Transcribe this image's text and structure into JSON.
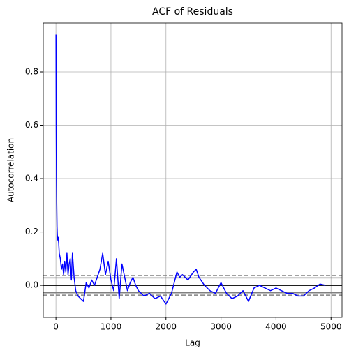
{
  "chart_data": {
    "type": "line",
    "title": "ACF of Residuals",
    "xlabel": "Lag",
    "ylabel": "Autocorrelation",
    "xlim": [
      -230,
      5200
    ],
    "ylim": [
      -0.12,
      0.983
    ],
    "xticks": [
      0,
      1000,
      2000,
      3000,
      4000,
      5000
    ],
    "yticks": [
      {
        "value": 0,
        "label": "0.0"
      },
      0.2,
      0.4,
      0.6,
      0.8
    ],
    "grid": true,
    "hlines": [
      {
        "value": 0.0368,
        "color": "grey",
        "style": "dashed"
      },
      {
        "value": 0.028,
        "color": "grey",
        "style": "solid"
      },
      {
        "value": 0,
        "color": "black",
        "style": "solid"
      },
      {
        "value": -0.028,
        "color": "grey",
        "style": "solid"
      },
      {
        "value": -0.0368,
        "color": "grey",
        "style": "dashed"
      }
    ],
    "series": [
      {
        "color": "blue",
        "x": [
          1,
          5,
          10,
          15,
          20,
          25,
          30,
          40,
          50,
          60,
          80,
          100,
          120,
          140,
          160,
          180,
          200,
          220,
          240,
          260,
          280,
          300,
          330,
          360,
          400,
          450,
          500,
          550,
          600,
          650,
          700,
          750,
          800,
          850,
          900,
          950,
          1000,
          1050,
          1100,
          1150,
          1200,
          1250,
          1300,
          1350,
          1400,
          1450,
          1500,
          1600,
          1700,
          1800,
          1900,
          2000,
          2100,
          2200,
          2250,
          2300,
          2400,
          2500,
          2550,
          2600,
          2700,
          2800,
          2900,
          3000,
          3100,
          3200,
          3300,
          3400,
          3500,
          3600,
          3700,
          3800,
          3900,
          4000,
          4100,
          4200,
          4300,
          4400,
          4500,
          4600,
          4700,
          4800,
          4900
        ],
        "values": [
          0.94,
          0.6,
          0.4,
          0.3,
          0.22,
          0.19,
          0.17,
          0.18,
          0.16,
          0.12,
          0.1,
          0.06,
          0.08,
          0.04,
          0.09,
          0.05,
          0.12,
          0.04,
          0.08,
          0.1,
          0.02,
          0.12,
          0.03,
          -0.02,
          -0.04,
          -0.05,
          -0.06,
          0.01,
          -0.01,
          0.02,
          0.0,
          0.03,
          0.06,
          0.12,
          0.04,
          0.09,
          0.02,
          -0.02,
          0.1,
          -0.05,
          0.08,
          0.03,
          -0.02,
          0.01,
          0.03,
          0.0,
          -0.02,
          -0.04,
          -0.03,
          -0.05,
          -0.04,
          -0.07,
          -0.03,
          0.05,
          0.03,
          0.04,
          0.02,
          0.05,
          0.06,
          0.03,
          0.0,
          -0.02,
          -0.03,
          0.01,
          -0.03,
          -0.05,
          -0.04,
          -0.02,
          -0.06,
          -0.01,
          0.0,
          -0.01,
          -0.02,
          -0.01,
          -0.02,
          -0.03,
          -0.03,
          -0.04,
          -0.04,
          -0.02,
          -0.01,
          0.005,
          0.0
        ]
      }
    ]
  }
}
